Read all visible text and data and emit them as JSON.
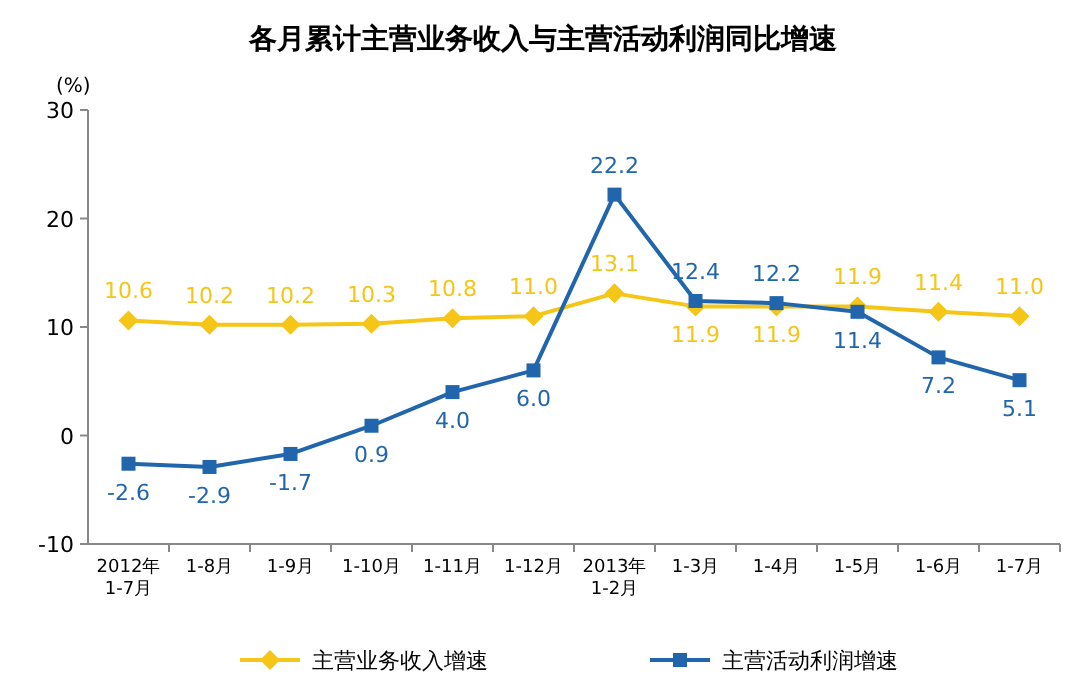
{
  "chart_data": {
    "type": "line",
    "title": "各月累计主营业务收入与主营活动利润同比增速",
    "ylabel": "(%)",
    "categories": [
      "2012年\n1-7月",
      "1-8月",
      "1-9月",
      "1-10月",
      "1-11月",
      "1-12月",
      "2013年\n1-2月",
      "1-3月",
      "1-4月",
      "1-5月",
      "1-6月",
      "1-7月"
    ],
    "series": [
      {
        "name": "主营业务收入增速",
        "color": "#f5c518",
        "marker": "diamond",
        "values": [
          10.6,
          10.2,
          10.2,
          10.3,
          10.8,
          11.0,
          13.1,
          11.9,
          11.9,
          11.9,
          11.4,
          11.0
        ],
        "value_labels": [
          "10.6",
          "10.2",
          "10.2",
          "10.3",
          "10.8",
          "11.0",
          "13.1",
          "11.9",
          "11.9",
          "11.9",
          "11.4",
          "11.0"
        ]
      },
      {
        "name": "主营活动利润增速",
        "color": "#2166ac",
        "marker": "square",
        "values": [
          -2.6,
          -2.9,
          -1.7,
          0.9,
          4.0,
          6.0,
          22.2,
          12.4,
          12.2,
          11.4,
          7.2,
          5.1
        ],
        "value_labels": [
          "-2.6",
          "-2.9",
          "-1.7",
          "0.9",
          "4.0",
          "6.0",
          "22.2",
          "12.4",
          "12.2",
          "11.4",
          "7.2",
          "5.1"
        ]
      }
    ],
    "ylim": [
      -10,
      30
    ],
    "yticks": [
      -10,
      0,
      10,
      20,
      30
    ],
    "legend": "bottom",
    "grid": false
  }
}
